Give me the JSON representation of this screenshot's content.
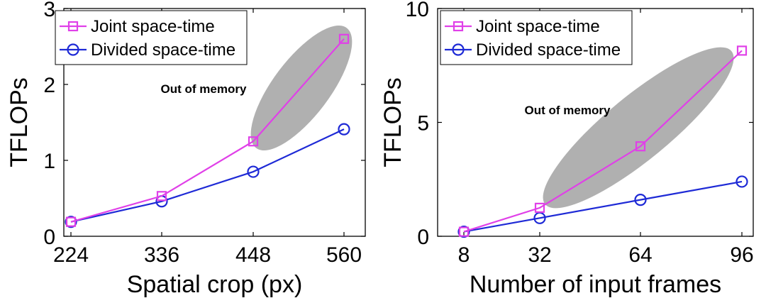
{
  "chart_data": [
    {
      "type": "line",
      "xlabel": "Spatial crop (px)",
      "ylabel": "TFLOPs",
      "x": [
        224,
        336,
        448,
        560
      ],
      "xticks": [
        "224",
        "336",
        "448",
        "560"
      ],
      "ylim": [
        0,
        3
      ],
      "yticks": [
        "0",
        "1",
        "2",
        "3"
      ],
      "series": [
        {
          "name": "Joint space-time",
          "values": [
            0.19,
            0.53,
            1.25,
            2.6
          ],
          "color": "#e040e8",
          "marker": "square"
        },
        {
          "name": "Divided space-time",
          "values": [
            0.19,
            0.46,
            0.85,
            1.41
          ],
          "color": "#1e2ad6",
          "marker": "circle"
        }
      ],
      "annotation": "Out of memory",
      "legend_position": "top-left",
      "grid": false
    },
    {
      "type": "line",
      "xlabel": "Number of input frames",
      "ylabel": "TFLOPs",
      "x": [
        8,
        32,
        64,
        96
      ],
      "xticks": [
        "8",
        "32",
        "64",
        "96"
      ],
      "ylim": [
        0,
        10
      ],
      "yticks": [
        "0",
        "5",
        "10"
      ],
      "series": [
        {
          "name": "Joint space-time",
          "values": [
            0.2,
            1.25,
            3.95,
            8.15
          ],
          "color": "#e040e8",
          "marker": "square"
        },
        {
          "name": "Divided space-time",
          "values": [
            0.2,
            0.8,
            1.6,
            2.4
          ],
          "color": "#1e2ad6",
          "marker": "circle"
        }
      ],
      "annotation": "Out of memory",
      "legend_position": "top-left",
      "grid": false
    }
  ]
}
